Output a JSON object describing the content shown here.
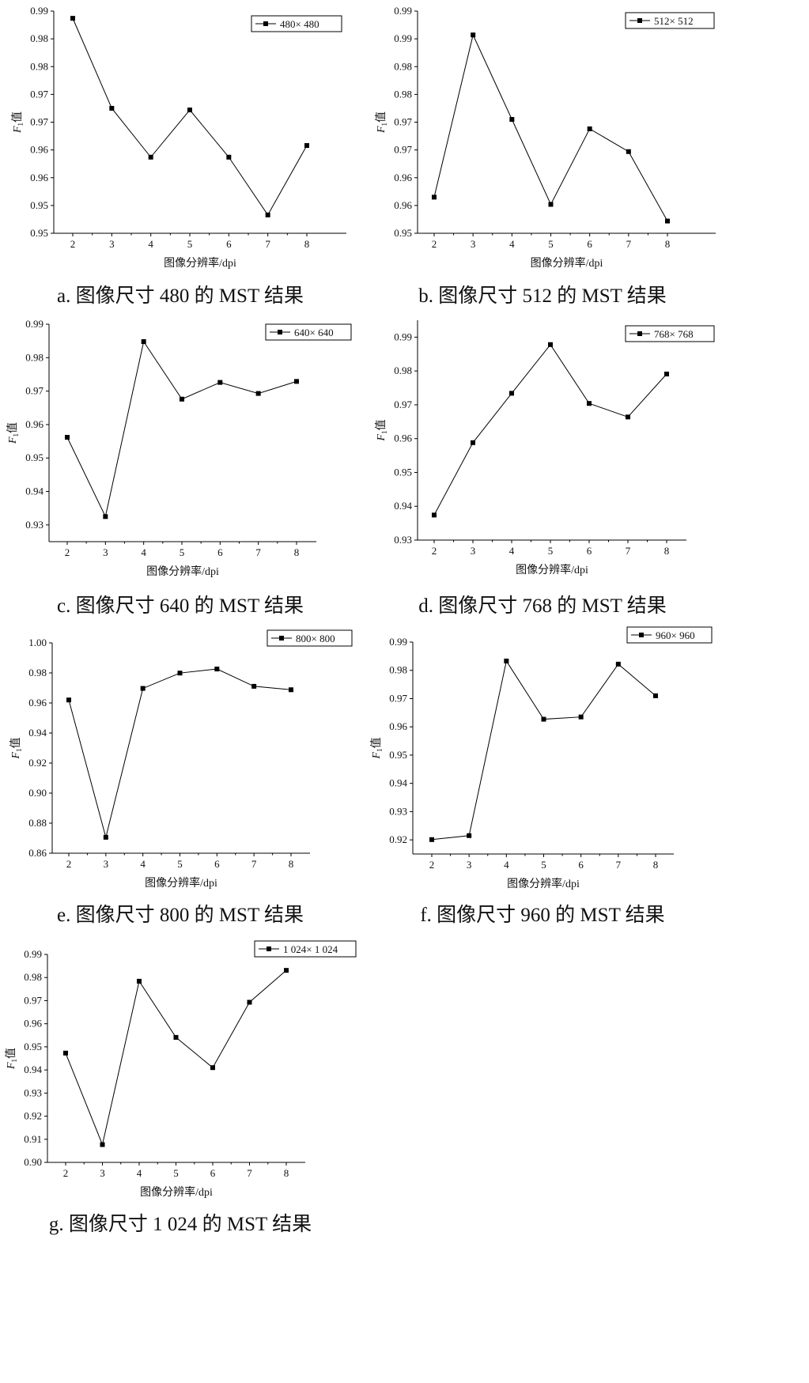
{
  "chart_data": [
    {
      "id": "a",
      "type": "line",
      "caption": "a. 图像尺寸 480 的 MST 结果",
      "xlabel": "图像分辨率/dpi",
      "ylabel_main": "F",
      "ylabel_sub": "1",
      "ylabel_suffix": "值",
      "x": [
        2,
        3,
        4,
        5,
        6,
        7,
        8
      ],
      "xticks": [
        "2",
        "3",
        "4",
        "5",
        "6",
        "7",
        "8"
      ],
      "ylim": [
        0.95,
        0.99
      ],
      "yticks": [
        0.95,
        0.955,
        0.96,
        0.965,
        0.97,
        0.975,
        0.98,
        0.985,
        0.99
      ],
      "ytick_labels": [
        "0.95",
        "0.95",
        "0.96",
        "0.96",
        "0.97",
        "0.97",
        "0.98",
        "0.98",
        "0.99"
      ],
      "legend_position": "top-right",
      "series": [
        {
          "name": "480× 480",
          "values": [
            0.9887,
            0.9725,
            0.9637,
            0.9722,
            0.9637,
            0.9533,
            0.9658
          ]
        }
      ]
    },
    {
      "id": "b",
      "type": "line",
      "caption": "b. 图像尺寸 512 的 MST 结果",
      "xlabel": "图像分辨率/dpi",
      "ylabel_main": "F",
      "ylabel_sub": "1",
      "ylabel_suffix": "值",
      "x": [
        2,
        3,
        4,
        5,
        6,
        7,
        8
      ],
      "xticks": [
        "2",
        "3",
        "4",
        "5",
        "6",
        "7",
        "8"
      ],
      "ylim": [
        0.95,
        0.99
      ],
      "yticks": [
        0.95,
        0.955,
        0.96,
        0.965,
        0.97,
        0.975,
        0.98,
        0.985,
        0.99
      ],
      "ytick_labels": [
        "0.95",
        "0.96",
        "0.96",
        "0.97",
        "0.97",
        "0.98",
        "0.98",
        "0.99",
        "0.99"
      ],
      "legend_position": "top-right",
      "series": [
        {
          "name": "512× 512",
          "values": [
            0.9565,
            0.9857,
            0.9705,
            0.9552,
            0.9688,
            0.9647,
            0.9522
          ]
        }
      ]
    },
    {
      "id": "c",
      "type": "line",
      "caption": "c. 图像尺寸 640 的 MST 结果",
      "xlabel": "图像分辨率/dpi",
      "ylabel_main": "F",
      "ylabel_sub": "1",
      "ylabel_suffix": "值",
      "x": [
        2,
        3,
        4,
        5,
        6,
        7,
        8
      ],
      "xticks": [
        "2",
        "3",
        "4",
        "5",
        "6",
        "7",
        "8"
      ],
      "ylim": [
        0.925,
        0.99
      ],
      "yticks": [
        0.93,
        0.94,
        0.95,
        0.96,
        0.97,
        0.98,
        0.99
      ],
      "ytick_labels": [
        "0.93",
        "0.94",
        "0.95",
        "0.96",
        "0.97",
        "0.98",
        "0.99"
      ],
      "legend_position": "top-right",
      "series": [
        {
          "name": "640× 640",
          "values": [
            0.9562,
            0.9325,
            0.9848,
            0.9676,
            0.9726,
            0.9693,
            0.9729
          ]
        }
      ]
    },
    {
      "id": "d",
      "type": "line",
      "caption": "d. 图像尺寸 768 的 MST 结果",
      "xlabel": "图像分辨率/dpi",
      "ylabel_main": "F",
      "ylabel_sub": "1",
      "ylabel_suffix": "值",
      "x": [
        2,
        3,
        4,
        5,
        6,
        7,
        8
      ],
      "xticks": [
        "2",
        "3",
        "4",
        "5",
        "6",
        "7",
        "8"
      ],
      "ylim": [
        0.93,
        0.995
      ],
      "yticks": [
        0.93,
        0.94,
        0.95,
        0.96,
        0.97,
        0.98,
        0.99
      ],
      "ytick_labels": [
        "0.93",
        "0.94",
        "0.95",
        "0.96",
        "0.97",
        "0.98",
        "0.99"
      ],
      "legend_position": "top-right",
      "series": [
        {
          "name": "768× 768",
          "values": [
            0.9374,
            0.9588,
            0.9734,
            0.9878,
            0.9704,
            0.9664,
            0.9791
          ]
        }
      ]
    },
    {
      "id": "e",
      "type": "line",
      "caption": "e. 图像尺寸 800 的 MST 结果",
      "xlabel": "图像分辨率/dpi",
      "ylabel_main": "F",
      "ylabel_sub": "1",
      "ylabel_suffix": "值",
      "x": [
        2,
        3,
        4,
        5,
        6,
        7,
        8
      ],
      "xticks": [
        "2",
        "3",
        "4",
        "5",
        "6",
        "7",
        "8"
      ],
      "ylim": [
        0.86,
        1.0
      ],
      "yticks": [
        0.86,
        0.88,
        0.9,
        0.92,
        0.94,
        0.96,
        0.98,
        1.0
      ],
      "ytick_labels": [
        "0.86",
        "0.88",
        "0.90",
        "0.92",
        "0.94",
        "0.96",
        "0.98",
        "1.00"
      ],
      "legend_position": "top-right",
      "series": [
        {
          "name": "800× 800",
          "values": [
            0.962,
            0.8706,
            0.9697,
            0.9799,
            0.9826,
            0.9711,
            0.9688
          ]
        }
      ]
    },
    {
      "id": "f",
      "type": "line",
      "caption": "f. 图像尺寸 960 的 MST 结果",
      "xlabel": "图像分辨率/dpi",
      "ylabel_main": "F",
      "ylabel_sub": "1",
      "ylabel_suffix": "值",
      "x": [
        2,
        3,
        4,
        5,
        6,
        7,
        8
      ],
      "xticks": [
        "2",
        "3",
        "4",
        "5",
        "6",
        "7",
        "8"
      ],
      "ylim": [
        0.915,
        0.99
      ],
      "yticks": [
        0.92,
        0.93,
        0.94,
        0.95,
        0.96,
        0.97,
        0.98,
        0.99
      ],
      "ytick_labels": [
        "0.92",
        "0.93",
        "0.94",
        "0.95",
        "0.96",
        "0.97",
        "0.98",
        "0.99"
      ],
      "legend_position": "top-right",
      "series": [
        {
          "name": "960× 960",
          "values": [
            0.9201,
            0.9215,
            0.9833,
            0.9627,
            0.9635,
            0.9822,
            0.971
          ]
        }
      ]
    },
    {
      "id": "g",
      "type": "line",
      "caption": "g. 图像尺寸 1 024 的 MST 结果",
      "xlabel": "图像分辨率/dpi",
      "ylabel_main": "F",
      "ylabel_sub": "1",
      "ylabel_suffix": "值",
      "x": [
        2,
        3,
        4,
        5,
        6,
        7,
        8
      ],
      "xticks": [
        "2",
        "3",
        "4",
        "5",
        "6",
        "7",
        "8"
      ],
      "ylim": [
        0.9,
        0.99
      ],
      "yticks": [
        0.9,
        0.91,
        0.92,
        0.93,
        0.94,
        0.95,
        0.96,
        0.97,
        0.98,
        0.99
      ],
      "ytick_labels": [
        "0.90",
        "0.91",
        "0.92",
        "0.93",
        "0.94",
        "0.95",
        "0.96",
        "0.97",
        "0.98",
        "0.99"
      ],
      "legend_position": "top-right",
      "series": [
        {
          "name": "1 024× 1 024",
          "values": [
            0.9473,
            0.9077,
            0.9784,
            0.9541,
            0.941,
            0.9693,
            0.9831
          ]
        }
      ]
    }
  ]
}
